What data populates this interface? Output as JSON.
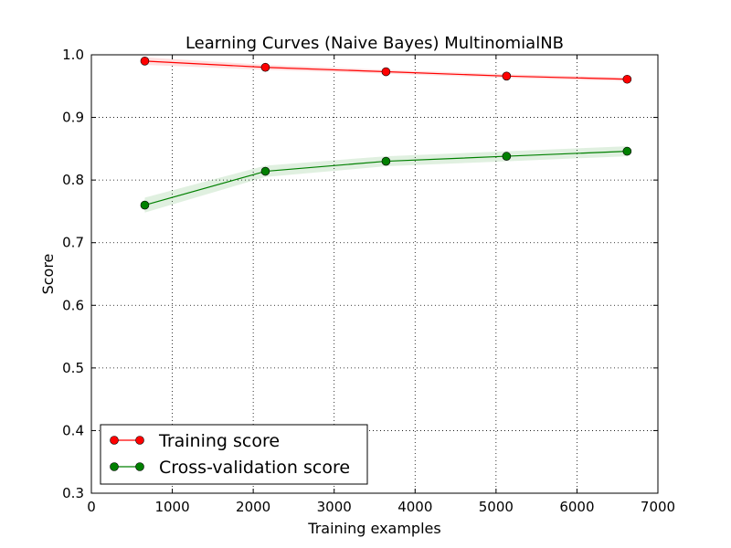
{
  "chart_data": {
    "type": "line",
    "title": "Learning Curves (Naive Bayes) MultinomialNB",
    "xlabel": "Training examples",
    "ylabel": "Score",
    "xlim": [
      0,
      7000
    ],
    "ylim": [
      0.3,
      1.0
    ],
    "xticks": [
      "0",
      "1000",
      "2000",
      "3000",
      "4000",
      "5000",
      "6000",
      "7000"
    ],
    "yticks": [
      "0.3",
      "0.4",
      "0.5",
      "0.6",
      "0.7",
      "0.8",
      "0.9",
      "1.0"
    ],
    "grid": true,
    "legend_position": "bottom-left",
    "x": [
      660,
      2150,
      3640,
      5130,
      6620
    ],
    "series": [
      {
        "name": "Training score",
        "color": "#ff0000",
        "values": [
          0.99,
          0.98,
          0.973,
          0.966,
          0.961
        ],
        "band": [
          0.006,
          0.004,
          0.003,
          0.003,
          0.003
        ]
      },
      {
        "name": "Cross-validation score",
        "color": "#008000",
        "values": [
          0.76,
          0.814,
          0.83,
          0.838,
          0.846
        ],
        "band": [
          0.012,
          0.009,
          0.008,
          0.008,
          0.008
        ]
      }
    ]
  }
}
